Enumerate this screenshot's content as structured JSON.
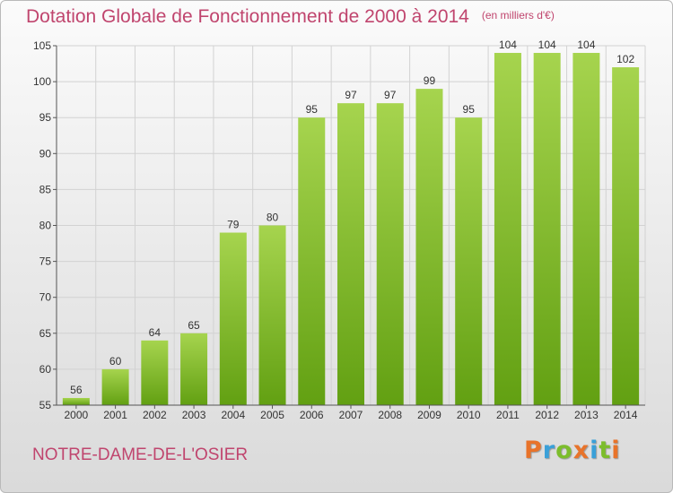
{
  "title": "Dotation Globale de Fonctionnement de 2000 à 2014",
  "unit_label": "(en milliers d'€)",
  "commune": "NOTRE-DAME-DE-L'OSIER",
  "logo": {
    "text": "Proxiti",
    "letter_colors": [
      "#e8732a",
      "#3aa0d8",
      "#7cbd2c",
      "#e8732a",
      "#3aa0d8",
      "#7cbd2c",
      "#e8732a"
    ]
  },
  "colors": {
    "title": "#c0456e",
    "bar_light": "#a6d44e",
    "bar_dark": "#62a012",
    "grid": "#d2d2d2",
    "axis": "#555555"
  },
  "chart_data": {
    "type": "bar",
    "categories": [
      "2000",
      "2001",
      "2002",
      "2003",
      "2004",
      "2005",
      "2006",
      "2007",
      "2008",
      "2009",
      "2010",
      "2011",
      "2012",
      "2013",
      "2014"
    ],
    "values": [
      56,
      60,
      64,
      65,
      79,
      80,
      95,
      97,
      97,
      99,
      95,
      104,
      104,
      104,
      102
    ],
    "data_labels": [
      "56",
      "60",
      "64",
      "65",
      "79",
      "80",
      "95",
      "97",
      "97",
      "99",
      "95",
      "104",
      "104",
      "104",
      "102"
    ],
    "ylim": [
      55,
      105
    ],
    "yticks": [
      "55",
      "60",
      "65",
      "70",
      "75",
      "80",
      "85",
      "90",
      "95",
      "100",
      "105"
    ],
    "xlabel": "",
    "ylabel": "",
    "grid": true,
    "legend": "none"
  }
}
